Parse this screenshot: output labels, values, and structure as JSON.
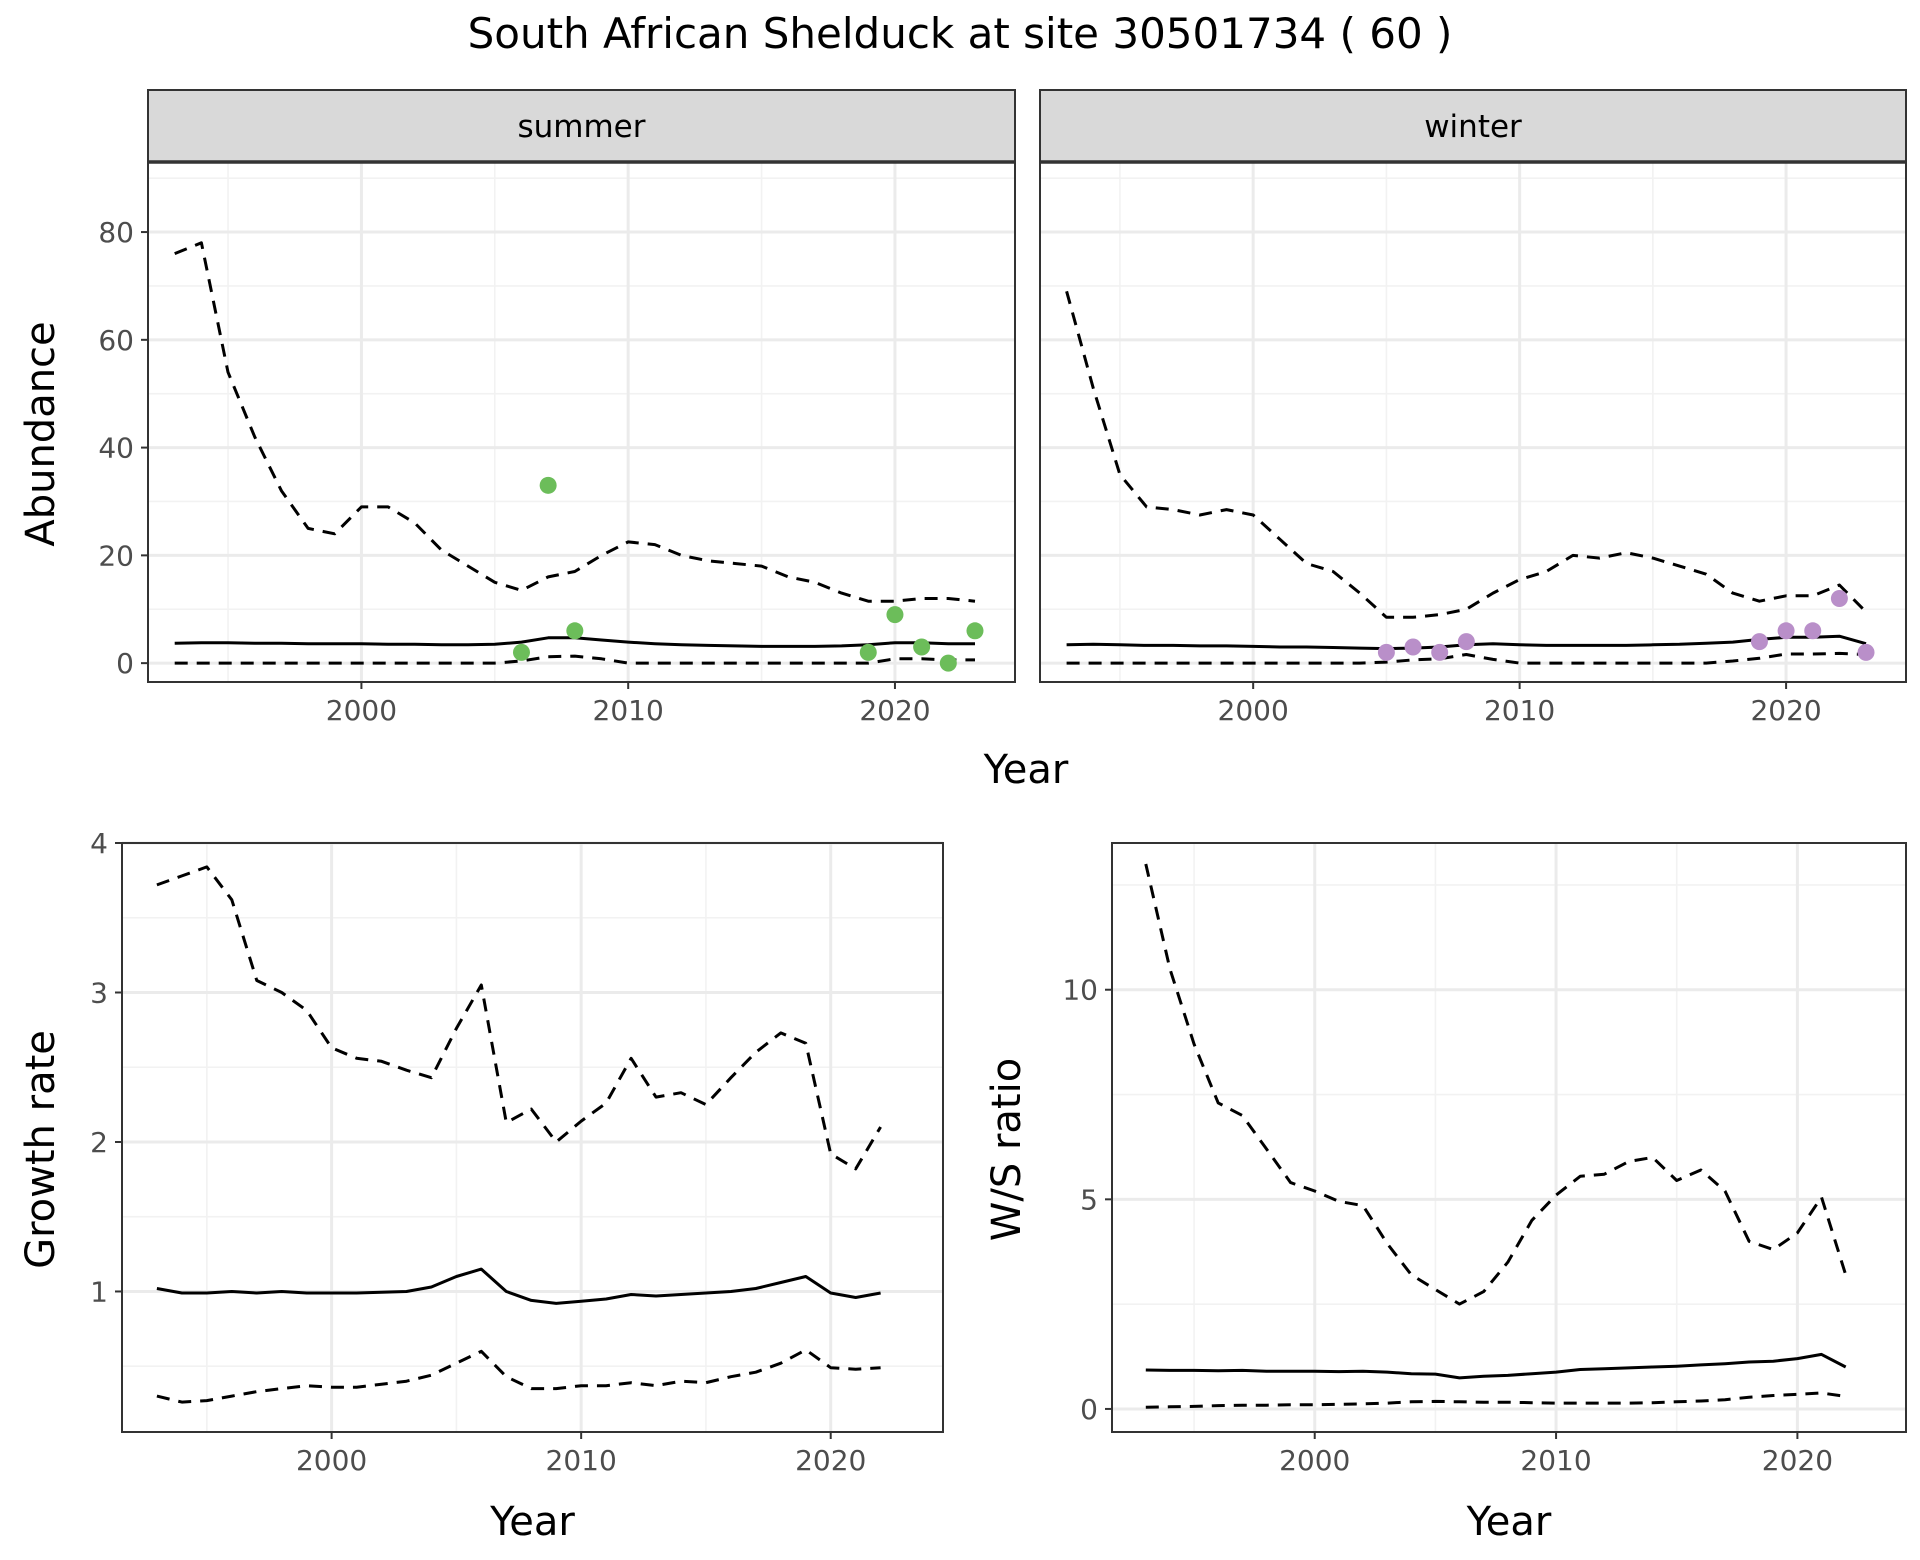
{
  "title": "South African Shelduck at site 30501734 ( 60 )",
  "colors": {
    "summer_points": "#6cbd5a",
    "winter_points": "#b98fc9",
    "strip_fill": "#d9d9d9",
    "grid_major": "#ebebeb",
    "line": "#000000"
  },
  "chart_data": [
    {
      "type": "line",
      "panel": "summer",
      "strip_label": "summer",
      "xlabel": "Year",
      "ylabel": "Abundance",
      "xlim": [
        1992,
        2024.5
      ],
      "ylim": [
        -3.5,
        93
      ],
      "x_ticks": [
        2000,
        2010,
        2020
      ],
      "y_ticks": [
        0,
        20,
        40,
        60,
        80
      ],
      "x": [
        1993,
        1994,
        1995,
        1996,
        1997,
        1998,
        1999,
        2000,
        2001,
        2002,
        2003,
        2004,
        2005,
        2006,
        2007,
        2008,
        2009,
        2010,
        2011,
        2012,
        2013,
        2014,
        2015,
        2016,
        2017,
        2018,
        2019,
        2020,
        2021,
        2022,
        2023
      ],
      "series": [
        {
          "role": "median",
          "values": [
            3.7,
            3.8,
            3.8,
            3.7,
            3.7,
            3.6,
            3.6,
            3.6,
            3.5,
            3.5,
            3.4,
            3.4,
            3.5,
            3.9,
            4.7,
            4.7,
            4.3,
            3.9,
            3.6,
            3.4,
            3.3,
            3.2,
            3.1,
            3.1,
            3.1,
            3.2,
            3.4,
            3.8,
            3.8,
            3.6,
            3.6
          ]
        },
        {
          "role": "upper",
          "values": [
            76,
            78,
            54,
            42,
            32,
            25,
            24,
            29,
            29,
            26,
            21,
            18,
            15,
            13.5,
            16,
            17,
            20,
            22.5,
            22,
            20,
            19,
            18.5,
            18,
            16,
            15,
            13,
            11.5,
            11.5,
            12,
            12,
            11.5
          ]
        },
        {
          "role": "lower",
          "values": [
            0,
            0,
            0,
            0,
            0,
            0,
            0,
            0,
            0,
            0,
            0,
            0,
            0,
            0.4,
            1.2,
            1.3,
            0.8,
            0,
            0,
            0,
            0,
            0,
            0,
            0,
            0,
            0,
            0,
            0.8,
            0.8,
            0.6,
            0.6
          ]
        }
      ],
      "points": {
        "x": [
          2006,
          2007,
          2008,
          2019,
          2020,
          2021,
          2022,
          2023
        ],
        "y": [
          2,
          33,
          6,
          2,
          9,
          3,
          0,
          6
        ]
      }
    },
    {
      "type": "line",
      "panel": "winter",
      "strip_label": "winter",
      "xlabel": "Year",
      "ylabel": "Abundance",
      "xlim": [
        1992,
        2024.5
      ],
      "ylim": [
        -3.5,
        93
      ],
      "x_ticks": [
        2000,
        2010,
        2020
      ],
      "y_ticks": [
        0,
        20,
        40,
        60,
        80
      ],
      "x": [
        1993,
        1994,
        1995,
        1996,
        1997,
        1998,
        1999,
        2000,
        2001,
        2002,
        2003,
        2004,
        2005,
        2006,
        2007,
        2008,
        2009,
        2010,
        2011,
        2012,
        2013,
        2014,
        2015,
        2016,
        2017,
        2018,
        2019,
        2020,
        2021,
        2022,
        2023
      ],
      "series": [
        {
          "role": "median",
          "values": [
            3.4,
            3.5,
            3.4,
            3.3,
            3.3,
            3.2,
            3.2,
            3.1,
            3.0,
            3.0,
            2.9,
            2.8,
            2.7,
            2.8,
            3.0,
            3.4,
            3.6,
            3.4,
            3.3,
            3.3,
            3.3,
            3.3,
            3.4,
            3.5,
            3.7,
            3.9,
            4.4,
            4.8,
            4.8,
            5.0,
            3.6
          ]
        },
        {
          "role": "upper",
          "values": [
            69,
            51,
            35,
            29,
            28.5,
            27.5,
            28.5,
            27.5,
            23,
            18.5,
            17,
            13,
            8.5,
            8.5,
            9,
            10,
            13,
            15.5,
            17,
            20,
            19.5,
            20.5,
            19.5,
            18,
            16.5,
            13,
            11.5,
            12.5,
            12.5,
            14.5,
            9.5
          ]
        },
        {
          "role": "lower",
          "values": [
            0,
            0,
            0,
            0,
            0,
            0,
            0,
            0,
            0,
            0,
            0,
            0,
            0.2,
            0.6,
            0.8,
            1.6,
            0.7,
            0,
            0,
            0,
            0,
            0,
            0,
            0,
            0,
            0.4,
            0.9,
            1.7,
            1.7,
            1.8,
            1.6
          ]
        }
      ],
      "points": {
        "x": [
          2005,
          2006,
          2007,
          2008,
          2019,
          2020,
          2021,
          2022,
          2023
        ],
        "y": [
          2,
          3,
          2,
          4,
          4,
          6,
          6,
          12,
          2
        ]
      }
    },
    {
      "type": "line",
      "panel": "growth",
      "xlabel": "Year",
      "ylabel": "Growth rate",
      "xlim": [
        1991.6,
        2024.5
      ],
      "ylim": [
        0.06,
        4.0
      ],
      "x_ticks": [
        2000,
        2010,
        2020
      ],
      "y_ticks": [
        1,
        2,
        3,
        4
      ],
      "x": [
        1993,
        1994,
        1995,
        1996,
        1997,
        1998,
        1999,
        2000,
        2001,
        2002,
        2003,
        2004,
        2005,
        2006,
        2007,
        2008,
        2009,
        2010,
        2011,
        2012,
        2013,
        2014,
        2015,
        2016,
        2017,
        2018,
        2019,
        2020,
        2021,
        2022
      ],
      "series": [
        {
          "role": "median",
          "values": [
            1.02,
            0.99,
            0.99,
            1.0,
            0.99,
            1.0,
            0.99,
            0.99,
            0.99,
            0.995,
            1.0,
            1.03,
            1.1,
            1.15,
            1.0,
            0.94,
            0.92,
            0.935,
            0.95,
            0.98,
            0.97,
            0.98,
            0.99,
            1.0,
            1.02,
            1.06,
            1.1,
            0.99,
            0.96,
            0.99
          ]
        },
        {
          "role": "upper",
          "values": [
            3.72,
            3.78,
            3.84,
            3.62,
            3.08,
            3.0,
            2.88,
            2.63,
            2.56,
            2.54,
            2.48,
            2.43,
            2.76,
            3.05,
            2.13,
            2.22,
            2.0,
            2.14,
            2.26,
            2.56,
            2.3,
            2.33,
            2.25,
            2.43,
            2.6,
            2.73,
            2.66,
            1.92,
            1.82,
            2.1
          ]
        },
        {
          "role": "lower",
          "values": [
            0.3,
            0.26,
            0.27,
            0.3,
            0.33,
            0.35,
            0.37,
            0.36,
            0.36,
            0.38,
            0.4,
            0.44,
            0.52,
            0.6,
            0.43,
            0.35,
            0.35,
            0.37,
            0.37,
            0.39,
            0.37,
            0.4,
            0.39,
            0.43,
            0.46,
            0.52,
            0.61,
            0.49,
            0.48,
            0.49
          ]
        }
      ]
    },
    {
      "type": "line",
      "panel": "ratio",
      "xlabel": "Year",
      "ylabel": "W/S ratio",
      "xlim": [
        1991.6,
        2024.5
      ],
      "ylim": [
        -0.55,
        13.5
      ],
      "x_ticks": [
        2000,
        2010,
        2020
      ],
      "y_ticks": [
        0,
        5,
        10
      ],
      "x": [
        1993,
        1994,
        1995,
        1996,
        1997,
        1998,
        1999,
        2000,
        2001,
        2002,
        2003,
        2004,
        2005,
        2006,
        2007,
        2008,
        2009,
        2010,
        2011,
        2012,
        2013,
        2014,
        2015,
        2016,
        2017,
        2018,
        2019,
        2020,
        2021,
        2022
      ],
      "series": [
        {
          "role": "median",
          "values": [
            0.93,
            0.92,
            0.92,
            0.91,
            0.92,
            0.9,
            0.9,
            0.9,
            0.89,
            0.9,
            0.88,
            0.84,
            0.83,
            0.74,
            0.78,
            0.8,
            0.84,
            0.88,
            0.94,
            0.96,
            0.98,
            1.0,
            1.02,
            1.05,
            1.08,
            1.12,
            1.14,
            1.2,
            1.3,
            1.0
          ]
        },
        {
          "role": "upper",
          "values": [
            13.0,
            10.5,
            8.7,
            7.3,
            7.0,
            6.2,
            5.4,
            5.2,
            4.95,
            4.85,
            3.95,
            3.2,
            2.85,
            2.5,
            2.8,
            3.5,
            4.5,
            5.1,
            5.55,
            5.6,
            5.9,
            6.0,
            5.45,
            5.7,
            5.2,
            4.0,
            3.8,
            4.2,
            5.05,
            3.2
          ]
        },
        {
          "role": "lower",
          "values": [
            0.04,
            0.05,
            0.06,
            0.08,
            0.09,
            0.09,
            0.1,
            0.1,
            0.11,
            0.12,
            0.14,
            0.17,
            0.18,
            0.17,
            0.16,
            0.16,
            0.15,
            0.14,
            0.14,
            0.14,
            0.14,
            0.15,
            0.17,
            0.19,
            0.22,
            0.28,
            0.32,
            0.35,
            0.38,
            0.3
          ]
        }
      ]
    }
  ]
}
